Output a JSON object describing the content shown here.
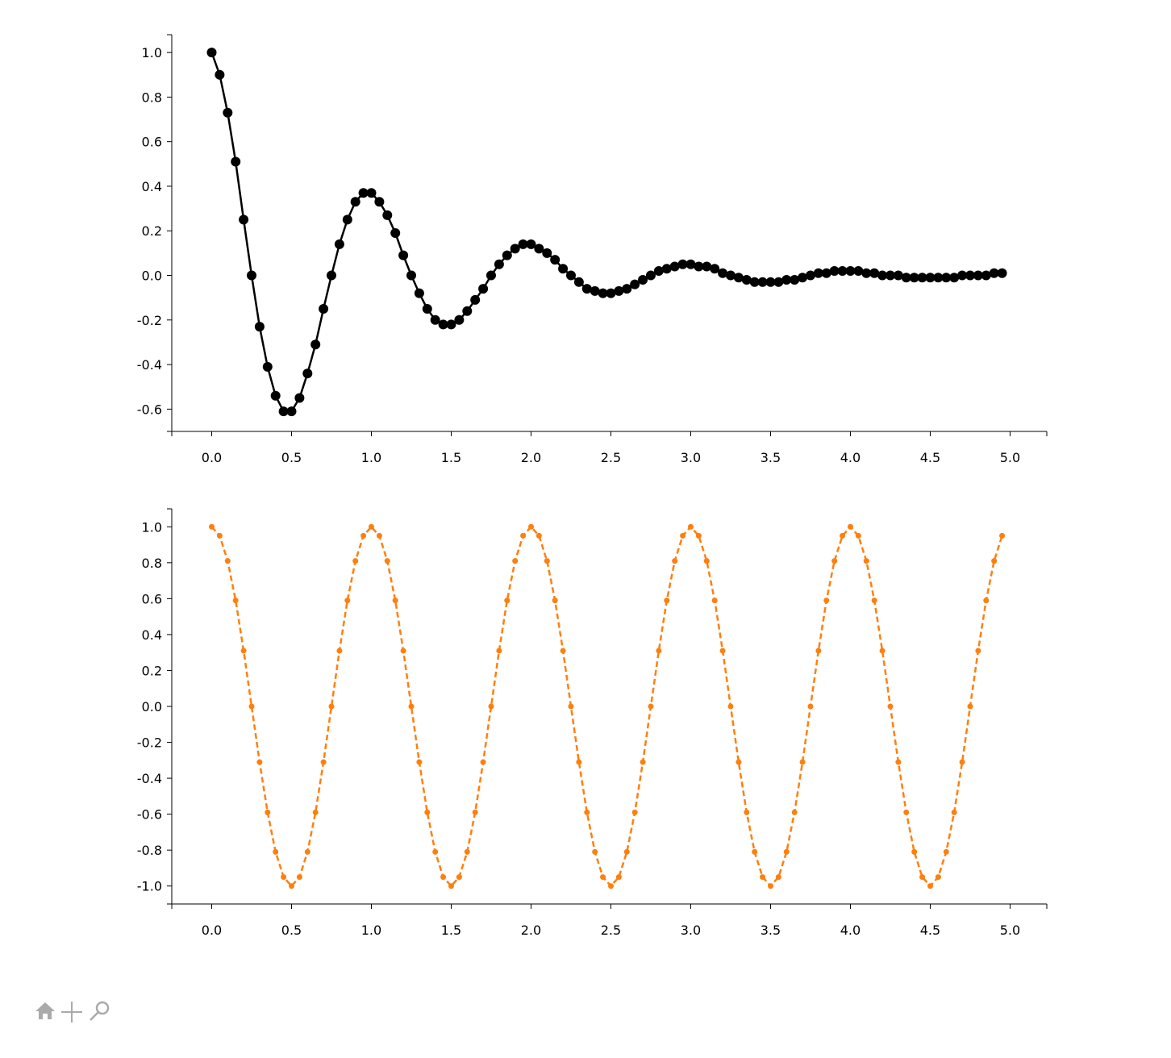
{
  "chart_data": [
    {
      "type": "line",
      "x": [
        0,
        0.05,
        0.1,
        0.15,
        0.2,
        0.25,
        0.3,
        0.35,
        0.4,
        0.45,
        0.5,
        0.55,
        0.6,
        0.65,
        0.7,
        0.75,
        0.8,
        0.85,
        0.9,
        0.95,
        1,
        1.05,
        1.1,
        1.15,
        1.2,
        1.25,
        1.3,
        1.35,
        1.4,
        1.45,
        1.5,
        1.55,
        1.6,
        1.65,
        1.7,
        1.75,
        1.8,
        1.85,
        1.9,
        1.95,
        2,
        2.05,
        2.1,
        2.15,
        2.2,
        2.25,
        2.3,
        2.35,
        2.4,
        2.45,
        2.5,
        2.55,
        2.6,
        2.65,
        2.7,
        2.75,
        2.8,
        2.85,
        2.9,
        2.95,
        3,
        3.05,
        3.1,
        3.15,
        3.2,
        3.25,
        3.3,
        3.35,
        3.4,
        3.45,
        3.5,
        3.55,
        3.6,
        3.65,
        3.7,
        3.75,
        3.8,
        3.85,
        3.9,
        3.95,
        4,
        4.05,
        4.1,
        4.15,
        4.2,
        4.25,
        4.3,
        4.35,
        4.4,
        4.45,
        4.5,
        4.55,
        4.6,
        4.65,
        4.7,
        4.75,
        4.8,
        4.85,
        4.9,
        4.95
      ],
      "series": [
        {
          "color": "#000000",
          "marker_size": 6,
          "dashed": false,
          "values": [
            1,
            0.9,
            0.73,
            0.51,
            0.25,
            0,
            -0.23,
            -0.41,
            -0.54,
            -0.61,
            -0.61,
            -0.55,
            -0.44,
            -0.31,
            -0.15,
            0,
            0.14,
            0.25,
            0.33,
            0.37,
            0.37,
            0.33,
            0.27,
            0.19,
            0.09,
            0,
            -0.08,
            -0.15,
            -0.2,
            -0.22,
            -0.22,
            -0.2,
            -0.16,
            -0.11,
            -0.06,
            0,
            0.05,
            0.09,
            0.12,
            0.14,
            0.14,
            0.12,
            0.1,
            0.07,
            0.03,
            0,
            -0.03,
            -0.06,
            -0.07,
            -0.08,
            -0.08,
            -0.07,
            -0.06,
            -0.04,
            -0.02,
            0,
            0.02,
            0.03,
            0.04,
            0.05,
            0.05,
            0.04,
            0.04,
            0.03,
            0.01,
            0,
            -0.01,
            -0.02,
            -0.03,
            -0.03,
            -0.03,
            -0.03,
            -0.02,
            -0.02,
            -0.01,
            0,
            0.01,
            0.01,
            0.02,
            0.02,
            0.02,
            0.02,
            0.01,
            0.01,
            0,
            0,
            0,
            -0.01,
            -0.01,
            -0.01,
            -0.01,
            -0.01,
            -0.01,
            -0.01,
            0,
            0,
            0,
            0,
            0.01,
            0.01
          ]
        }
      ],
      "xlim": [
        -0.25,
        5.23
      ],
      "ylim": [
        -0.7,
        1.08
      ],
      "xticks": [
        {
          "value": 0,
          "label": "0.0"
        },
        0.5,
        {
          "value": 1,
          "label": "1.0"
        },
        1.5,
        {
          "value": 2,
          "label": "2.0"
        },
        2.5,
        {
          "value": 3,
          "label": "3.0"
        },
        3.5,
        {
          "value": 4,
          "label": "4.0"
        },
        4.5,
        {
          "value": 5,
          "label": "5.0"
        }
      ],
      "yticks": [
        -0.6,
        -0.4,
        -0.2,
        {
          "value": 0,
          "label": "0.0"
        },
        0.2,
        0.4,
        0.6,
        0.8,
        {
          "value": 1,
          "label": "1.0"
        }
      ]
    },
    {
      "type": "line",
      "x": [
        0,
        0.05,
        0.1,
        0.15,
        0.2,
        0.25,
        0.3,
        0.35,
        0.4,
        0.45,
        0.5,
        0.55,
        0.6,
        0.65,
        0.7,
        0.75,
        0.8,
        0.85,
        0.9,
        0.95,
        1,
        1.05,
        1.1,
        1.15,
        1.2,
        1.25,
        1.3,
        1.35,
        1.4,
        1.45,
        1.5,
        1.55,
        1.6,
        1.65,
        1.7,
        1.75,
        1.8,
        1.85,
        1.9,
        1.95,
        2,
        2.05,
        2.1,
        2.15,
        2.2,
        2.25,
        2.3,
        2.35,
        2.4,
        2.45,
        2.5,
        2.55,
        2.6,
        2.65,
        2.7,
        2.75,
        2.8,
        2.85,
        2.9,
        2.95,
        3,
        3.05,
        3.1,
        3.15,
        3.2,
        3.25,
        3.3,
        3.35,
        3.4,
        3.45,
        3.5,
        3.55,
        3.6,
        3.65,
        3.7,
        3.75,
        3.8,
        3.85,
        3.9,
        3.95,
        4,
        4.05,
        4.1,
        4.15,
        4.2,
        4.25,
        4.3,
        4.35,
        4.4,
        4.45,
        4.5,
        4.55,
        4.6,
        4.65,
        4.7,
        4.75,
        4.8,
        4.85,
        4.9,
        4.95
      ],
      "series": [
        {
          "color": "#ff7f0e",
          "marker_size": 3.5,
          "dashed": true,
          "values": [
            1,
            0.95,
            0.81,
            0.59,
            0.31,
            0,
            -0.31,
            -0.59,
            -0.81,
            -0.95,
            -1,
            -0.95,
            -0.81,
            -0.59,
            -0.31,
            0,
            0.31,
            0.59,
            0.81,
            0.95,
            1,
            0.95,
            0.81,
            0.59,
            0.31,
            0,
            -0.31,
            -0.59,
            -0.81,
            -0.95,
            -1,
            -0.95,
            -0.81,
            -0.59,
            -0.31,
            0,
            0.31,
            0.59,
            0.81,
            0.95,
            1,
            0.95,
            0.81,
            0.59,
            0.31,
            0,
            -0.31,
            -0.59,
            -0.81,
            -0.95,
            -1,
            -0.95,
            -0.81,
            -0.59,
            -0.31,
            0,
            0.31,
            0.59,
            0.81,
            0.95,
            1,
            0.95,
            0.81,
            0.59,
            0.31,
            0,
            -0.31,
            -0.59,
            -0.81,
            -0.95,
            -1,
            -0.95,
            -0.81,
            -0.59,
            -0.31,
            0,
            0.31,
            0.59,
            0.81,
            0.95,
            1,
            0.95,
            0.81,
            0.59,
            0.31,
            0,
            -0.31,
            -0.59,
            -0.81,
            -0.95,
            -1,
            -0.95,
            -0.81,
            -0.59,
            -0.31,
            0,
            0.31,
            0.59,
            0.81,
            0.95
          ]
        }
      ],
      "xlim": [
        -0.25,
        5.23
      ],
      "ylim": [
        -1.1,
        1.1
      ],
      "xticks": [
        {
          "value": 0,
          "label": "0.0"
        },
        0.5,
        {
          "value": 1,
          "label": "1.0"
        },
        1.5,
        {
          "value": 2,
          "label": "2.0"
        },
        2.5,
        {
          "value": 3,
          "label": "3.0"
        },
        3.5,
        {
          "value": 4,
          "label": "4.0"
        },
        4.5,
        {
          "value": 5,
          "label": "5.0"
        }
      ],
      "yticks": [
        {
          "value": -1,
          "label": "-1.0"
        },
        -0.8,
        -0.6,
        -0.4,
        -0.2,
        {
          "value": 0,
          "label": "0.0"
        },
        0.2,
        0.4,
        0.6,
        0.8,
        {
          "value": 1,
          "label": "1.0"
        }
      ]
    }
  ]
}
